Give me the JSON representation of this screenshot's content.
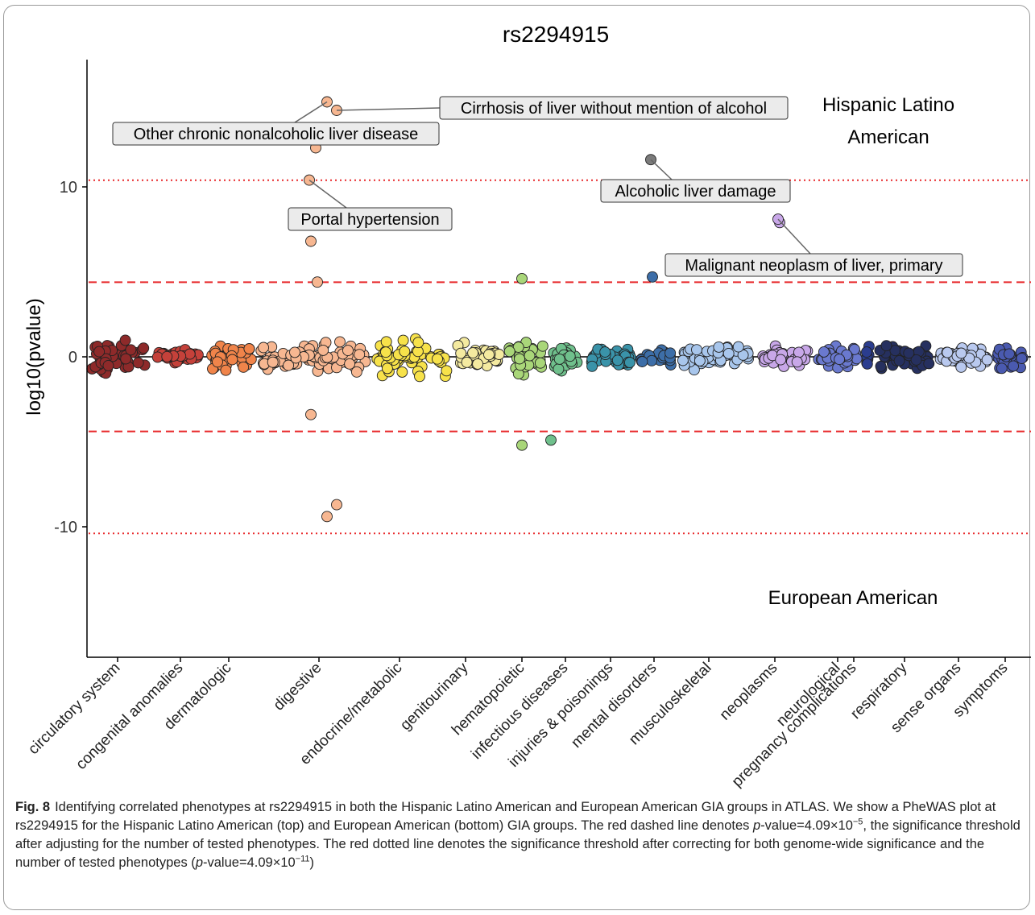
{
  "chart_data": {
    "type": "scatter",
    "title": "rs2294915",
    "ylabel": "log10(pvalue)",
    "xlabel": "",
    "ylim": [
      -17,
      17
    ],
    "yticks": [
      10,
      0,
      -10
    ],
    "ytick_labels": [
      "10",
      "0",
      "-10"
    ],
    "grid": false,
    "group_labels": {
      "top_line1": "Hispanic Latino",
      "top_line2": "American",
      "bottom": "European American"
    },
    "reference_lines": [
      {
        "kind": "dashed",
        "color": "#e8282a",
        "y": [
          4.39,
          -4.39
        ],
        "pvalue": "4.09e-5"
      },
      {
        "kind": "dotted",
        "color": "#e8282a",
        "y": [
          10.39,
          -10.39
        ],
        "pvalue": "4.09e-11"
      },
      {
        "kind": "solid",
        "color": "#000000",
        "y": [
          0
        ]
      }
    ],
    "categories": [
      "circulatory system",
      "congenital anomalies",
      "dermatologic",
      "digestive",
      "endocrine/metabolic",
      "genitourinary",
      "hematopoietic",
      "infectious diseases",
      "injuries & poisonings",
      "mental disorders",
      "musculoskeletal",
      "neoplasms",
      "neurological",
      "pregnancy complications",
      "respiratory",
      "sense organs",
      "symptoms"
    ],
    "category_colors": [
      "#8e2a2a",
      "#c5413a",
      "#f0844a",
      "#f7b791",
      "#f7e24a",
      "#f4eaa0",
      "#a9d679",
      "#6fc08c",
      "#3a93a9",
      "#3d6ea8",
      "#a8c6ec",
      "#c8a7e8",
      "#6a79cf",
      "#2b3d8f",
      "#26305f",
      "#b9c9ef",
      "#4a5ab0"
    ],
    "highlighted": [
      {
        "label": "Other chronic nonalcoholic liver disease",
        "category": "digestive",
        "y": 15.0
      },
      {
        "label": "Cirrhosis of liver without mention of alcohol",
        "category": "digestive",
        "y": 14.5
      },
      {
        "label": "Portal hypertension",
        "category": "digestive",
        "y": 10.4
      },
      {
        "label": "Alcoholic liver damage",
        "category": "mental disorders",
        "y": 11.6
      },
      {
        "label": "Malignant neoplasm of liver, primary",
        "category": "neoplasms",
        "y": 8.1
      }
    ],
    "notable_points": [
      {
        "category": "digestive",
        "y": 12.3
      },
      {
        "category": "digestive",
        "y": 6.8
      },
      {
        "category": "digestive",
        "y": 4.4
      },
      {
        "category": "digestive",
        "y": -3.4
      },
      {
        "category": "digestive",
        "y": -9.4
      },
      {
        "category": "digestive",
        "y": -8.7
      },
      {
        "category": "hematopoietic",
        "y": 4.6
      },
      {
        "category": "hematopoietic",
        "y": -5.2
      },
      {
        "category": "infectious diseases",
        "y": -4.9
      },
      {
        "category": "mental disorders",
        "y": 4.7
      },
      {
        "category": "neoplasms",
        "y": 7.9
      }
    ]
  },
  "caption": {
    "label": "Fig. 8",
    "before_pvalue1": "Identifying correlated phenotypes at rs2294915 in both the Hispanic Latino American and European American GIA groups in ATLAS. We show a PheWAS plot at rs2294915 for the Hispanic Latino American (top) and European American (bottom) GIA groups. The red dashed line denotes ",
    "pvalue_word": "p",
    "value1": "-value=4.09×10",
    "exp1": "−5",
    "middle": ", the significance threshold after adjusting for the number of tested phenotypes. The red dotted line denotes the significance threshold after correcting for both genome-wide significance and the number of tested phenotypes (",
    "value2": "-value=4.09×10",
    "exp2": "−11",
    "end": ")"
  }
}
